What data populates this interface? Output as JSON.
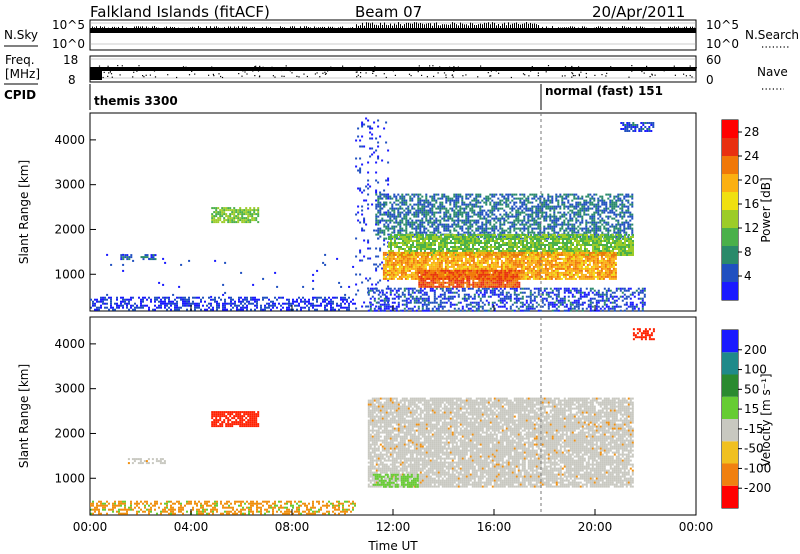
{
  "header": {
    "title": "Falkland Islands (fitACF)",
    "beam": "Beam 07",
    "date": "20/Apr/2011"
  },
  "status_panels": {
    "nsky": {
      "label": "N.Sky",
      "right_label": "N.Search",
      "left_ticks": [
        "10^5",
        "10^0"
      ],
      "right_ticks": [
        "10^5",
        "10^0"
      ]
    },
    "freq": {
      "label": "Freq.",
      "unit": "[MHz]",
      "right_label": "Nave",
      "left_ticks": [
        "18",
        "8"
      ],
      "right_ticks": [
        "60",
        "0"
      ]
    },
    "cpid": {
      "label": "CPID",
      "segments": [
        {
          "text": "themis 3300",
          "start": "00:00",
          "end": "18:00"
        },
        {
          "text": "normal (fast) 151",
          "start": "18:00",
          "end": "24:00"
        }
      ]
    }
  },
  "chart_data": [
    {
      "type": "heatmap",
      "name": "power",
      "xlabel": "Time UT",
      "ylabel": "Slant Range [km]",
      "x_ticks": [
        "00:00",
        "04:00",
        "08:00",
        "12:00",
        "16:00",
        "20:00",
        "00:00"
      ],
      "x_range_hours": [
        0,
        24
      ],
      "y_ticks": [
        1000,
        2000,
        3000,
        4000
      ],
      "y_range_km": [
        180,
        4600
      ],
      "colorbar": {
        "label": "Power [dB]",
        "ticks": [
          4,
          8,
          12,
          16,
          20,
          24,
          28
        ],
        "range": [
          0,
          30
        ],
        "colors": [
          "#1a1aff",
          "#2050c0",
          "#2a8a6a",
          "#4ab04a",
          "#9ccc28",
          "#f0e010",
          "#fbb012",
          "#f07808",
          "#e83010",
          "#ff0000"
        ]
      },
      "regions": [
        {
          "t0": 0,
          "t1": 10.5,
          "r0": 200,
          "r1": 500,
          "value": 3,
          "density": 0.5
        },
        {
          "t0": 0.4,
          "t1": 10.5,
          "r0": 500,
          "r1": 1500,
          "value": 3,
          "density": 0.012
        },
        {
          "t0": 1.2,
          "t1": 1.6,
          "r0": 1350,
          "r1": 1450,
          "value": 5,
          "density": 0.6
        },
        {
          "t0": 2.0,
          "t1": 2.6,
          "r0": 1350,
          "r1": 1450,
          "value": 5,
          "density": 0.6
        },
        {
          "t0": 4.8,
          "t1": 6.7,
          "r0": 2150,
          "r1": 2500,
          "value": 12,
          "density": 0.8
        },
        {
          "t0": 10.5,
          "t1": 11.8,
          "r0": 200,
          "r1": 4500,
          "value": 3,
          "density": 0.1
        },
        {
          "t0": 11.0,
          "t1": 22.0,
          "r0": 200,
          "r1": 700,
          "value": 4,
          "density": 0.5
        },
        {
          "t0": 11.3,
          "t1": 21.5,
          "r0": 1800,
          "r1": 2800,
          "value": 6,
          "density": 0.6
        },
        {
          "t0": 11.8,
          "t1": 21.5,
          "r0": 1450,
          "r1": 1900,
          "value": 12,
          "density": 0.8
        },
        {
          "t0": 11.6,
          "t1": 20.8,
          "r0": 900,
          "r1": 1500,
          "value": 20,
          "density": 0.9
        },
        {
          "t0": 13.0,
          "t1": 17.0,
          "r0": 700,
          "r1": 1100,
          "value": 24,
          "density": 0.9
        },
        {
          "t0": 21.0,
          "t1": 22.3,
          "r0": 4200,
          "r1": 4400,
          "value": 4,
          "density": 0.5
        }
      ]
    },
    {
      "type": "heatmap",
      "name": "velocity",
      "xlabel": "Time UT",
      "ylabel": "Slant Range [km]",
      "x_ticks": [
        "00:00",
        "04:00",
        "08:00",
        "12:00",
        "16:00",
        "20:00",
        "00:00"
      ],
      "x_range_hours": [
        0,
        24
      ],
      "y_ticks": [
        1000,
        2000,
        3000,
        4000
      ],
      "y_range_km": [
        180,
        4600
      ],
      "colorbar": {
        "label": "Velocity [m s⁻¹]",
        "ticks": [
          "200",
          "100",
          "50",
          "15",
          "-15",
          "-50",
          "-100",
          "-200"
        ],
        "colors": [
          "#1a1aff",
          "#1f8a8a",
          "#2a8a30",
          "#66cc33",
          "#c8c8c0",
          "#f0c020",
          "#f08010",
          "#ff0000"
        ]
      },
      "regions": [
        {
          "t0": 0,
          "t1": 10.5,
          "r0": 200,
          "r1": 500,
          "value": "orange",
          "density": 0.5
        },
        {
          "t0": 1.5,
          "t1": 3.0,
          "r0": 1350,
          "r1": 1450,
          "value": "gray",
          "density": 0.5
        },
        {
          "t0": 4.8,
          "t1": 6.7,
          "r0": 2150,
          "r1": 2500,
          "value": "red",
          "density": 0.8
        },
        {
          "t0": 11.0,
          "t1": 21.5,
          "r0": 800,
          "r1": 2800,
          "value": "gray",
          "density": 0.85
        },
        {
          "t0": 11.2,
          "t1": 13.0,
          "r0": 800,
          "r1": 1100,
          "value": "lime",
          "density": 0.6
        },
        {
          "t0": 21.5,
          "t1": 22.3,
          "r0": 4100,
          "r1": 4350,
          "value": "red",
          "density": 0.7
        }
      ]
    }
  ]
}
